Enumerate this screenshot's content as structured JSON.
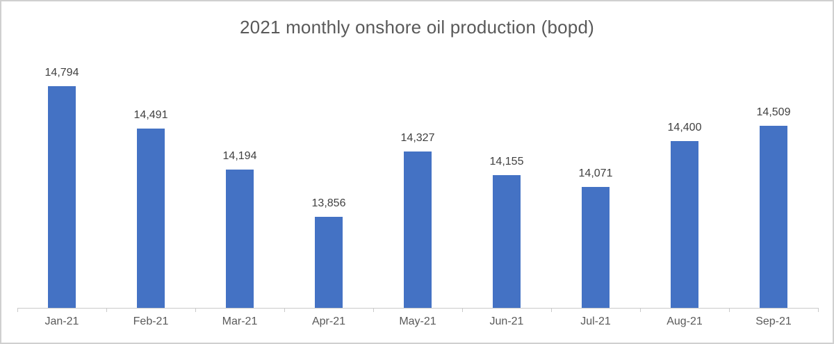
{
  "chart_data": {
    "type": "bar",
    "title": "2021 monthly onshore oil production (bopd)",
    "categories": [
      "Jan-21",
      "Feb-21",
      "Mar-21",
      "Apr-21",
      "May-21",
      "Jun-21",
      "Jul-21",
      "Aug-21",
      "Sep-21"
    ],
    "values": [
      14794,
      14491,
      14194,
      13856,
      14327,
      14155,
      14071,
      14400,
      14509
    ],
    "value_labels": [
      "14,794",
      "14,491",
      "14,194",
      "13,856",
      "14,327",
      "14,155",
      "14,071",
      "14,400",
      "14,509"
    ],
    "xlabel": "",
    "ylabel": "",
    "ylim": [
      13200,
      14850
    ],
    "grid": false,
    "legend": "none",
    "y_axis_visible": false,
    "colors": {
      "bar": "#4472C4",
      "title_text": "#595959",
      "data_label_text": "#404040",
      "axis_label_text": "#595959",
      "axis_line": "#C9C9C9",
      "frame_border": "#CFCFCF",
      "background": "#FFFFFF"
    }
  }
}
